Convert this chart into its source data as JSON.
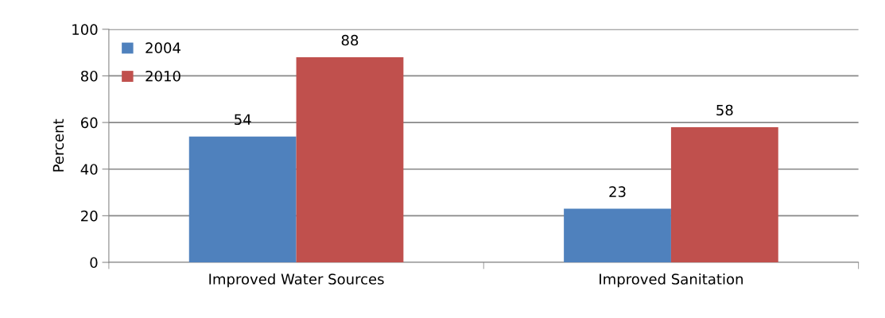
{
  "chart_data": {
    "type": "bar",
    "ylabel": "Percent",
    "categories": [
      "Improved Water Sources",
      "Improved Sanitation"
    ],
    "series": [
      {
        "name": "2004",
        "color": "#4f81bd",
        "values": [
          54,
          23
        ]
      },
      {
        "name": "2010",
        "color": "#c0504d",
        "values": [
          88,
          58
        ]
      }
    ],
    "ylim": [
      0,
      100
    ],
    "yticks": [
      0,
      20,
      40,
      60,
      80,
      100
    ],
    "grid": "y",
    "legend": "top left",
    "data_labels": true
  }
}
